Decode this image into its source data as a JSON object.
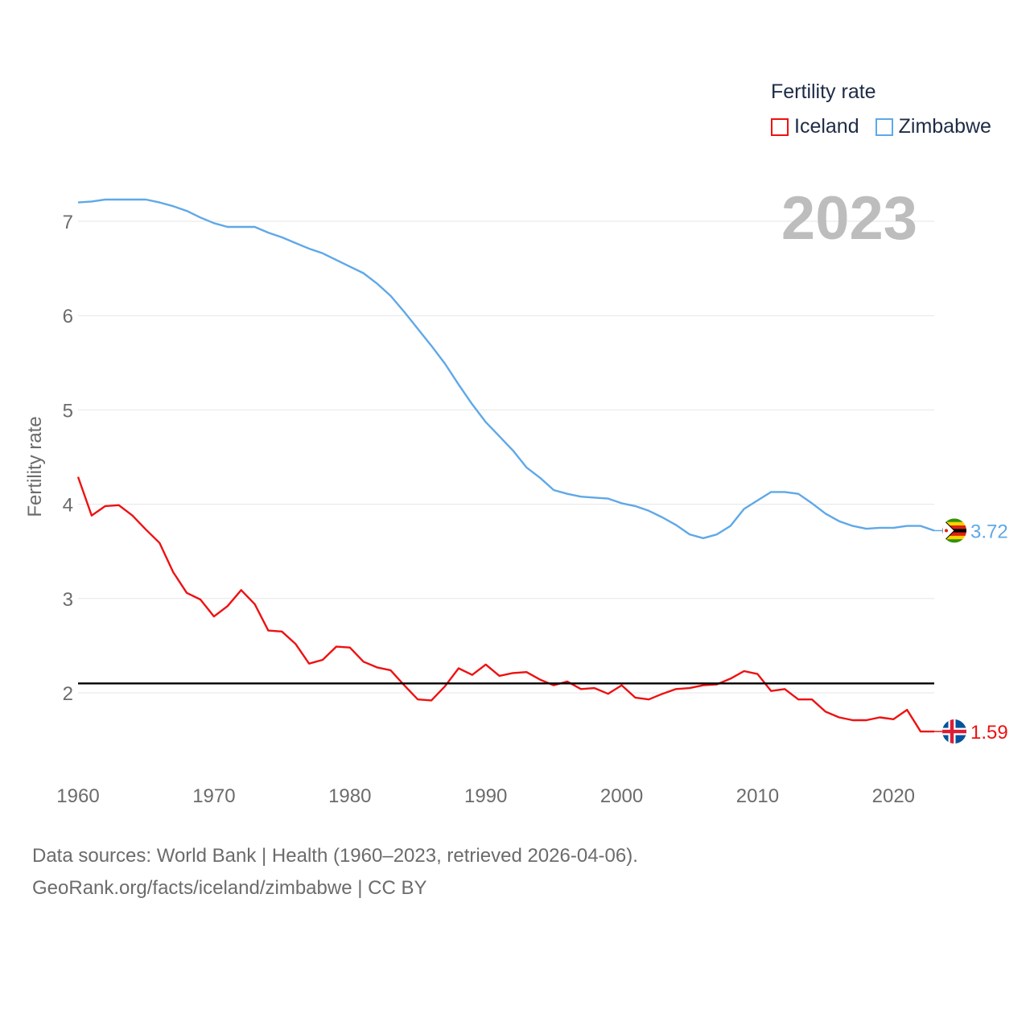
{
  "legend": {
    "title": "Fertility rate",
    "items": [
      {
        "label": "Iceland",
        "color": "#ee1111"
      },
      {
        "label": "Zimbabwe",
        "color": "#5fa8e8"
      }
    ]
  },
  "year_label": "2023",
  "footer": {
    "line1": "Data sources: World Bank | Health (1960–2023, retrieved 2026-04-06).",
    "line2": "GeoRank.org/facts/iceland/zimbabwe | CC BY"
  },
  "chart_data": {
    "type": "line",
    "title": "Fertility rate",
    "xlabel": "",
    "ylabel": "Fertility rate",
    "xlim": [
      1960,
      2023
    ],
    "ylim": [
      1.2,
      7.5
    ],
    "x_ticks": [
      1960,
      1970,
      1980,
      1990,
      2000,
      2010,
      2020
    ],
    "y_ticks": [
      2,
      3,
      4,
      5,
      6,
      7
    ],
    "reference_line": {
      "y": 2.1,
      "color": "#000000"
    },
    "x": [
      1960,
      1961,
      1962,
      1963,
      1964,
      1965,
      1966,
      1967,
      1968,
      1969,
      1970,
      1971,
      1972,
      1973,
      1974,
      1975,
      1976,
      1977,
      1978,
      1979,
      1980,
      1981,
      1982,
      1983,
      1984,
      1985,
      1986,
      1987,
      1988,
      1989,
      1990,
      1991,
      1992,
      1993,
      1994,
      1995,
      1996,
      1997,
      1998,
      1999,
      2000,
      2001,
      2002,
      2003,
      2004,
      2005,
      2006,
      2007,
      2008,
      2009,
      2010,
      2011,
      2012,
      2013,
      2014,
      2015,
      2016,
      2017,
      2018,
      2019,
      2020,
      2021,
      2022,
      2023
    ],
    "series": [
      {
        "name": "Iceland",
        "color": "#ee1111",
        "end_label": "1.59",
        "values": [
          4.29,
          3.88,
          3.98,
          3.99,
          3.88,
          3.73,
          3.59,
          3.28,
          3.06,
          2.99,
          2.81,
          2.92,
          3.09,
          2.94,
          2.66,
          2.65,
          2.52,
          2.31,
          2.35,
          2.49,
          2.48,
          2.33,
          2.27,
          2.24,
          2.08,
          1.93,
          1.92,
          2.07,
          2.26,
          2.19,
          2.3,
          2.18,
          2.21,
          2.22,
          2.14,
          2.08,
          2.12,
          2.04,
          2.05,
          1.99,
          2.08,
          1.95,
          1.93,
          1.99,
          2.04,
          2.05,
          2.08,
          2.09,
          2.15,
          2.23,
          2.2,
          2.02,
          2.04,
          1.93,
          1.93,
          1.8,
          1.74,
          1.71,
          1.71,
          1.74,
          1.72,
          1.82,
          1.59,
          1.59
        ]
      },
      {
        "name": "Zimbabwe",
        "color": "#5fa8e8",
        "end_label": "3.72",
        "values": [
          7.2,
          7.21,
          7.23,
          7.23,
          7.23,
          7.23,
          7.2,
          7.16,
          7.11,
          7.04,
          6.98,
          6.94,
          6.94,
          6.94,
          6.88,
          6.83,
          6.77,
          6.71,
          6.66,
          6.59,
          6.52,
          6.45,
          6.34,
          6.21,
          6.04,
          5.86,
          5.68,
          5.49,
          5.27,
          5.06,
          4.87,
          4.72,
          4.57,
          4.39,
          4.28,
          4.15,
          4.11,
          4.08,
          4.07,
          4.06,
          4.01,
          3.98,
          3.93,
          3.86,
          3.78,
          3.68,
          3.64,
          3.68,
          3.77,
          3.95,
          4.04,
          4.13,
          4.13,
          4.11,
          4.01,
          3.9,
          3.82,
          3.77,
          3.74,
          3.75,
          3.75,
          3.77,
          3.77,
          3.72
        ]
      }
    ]
  }
}
